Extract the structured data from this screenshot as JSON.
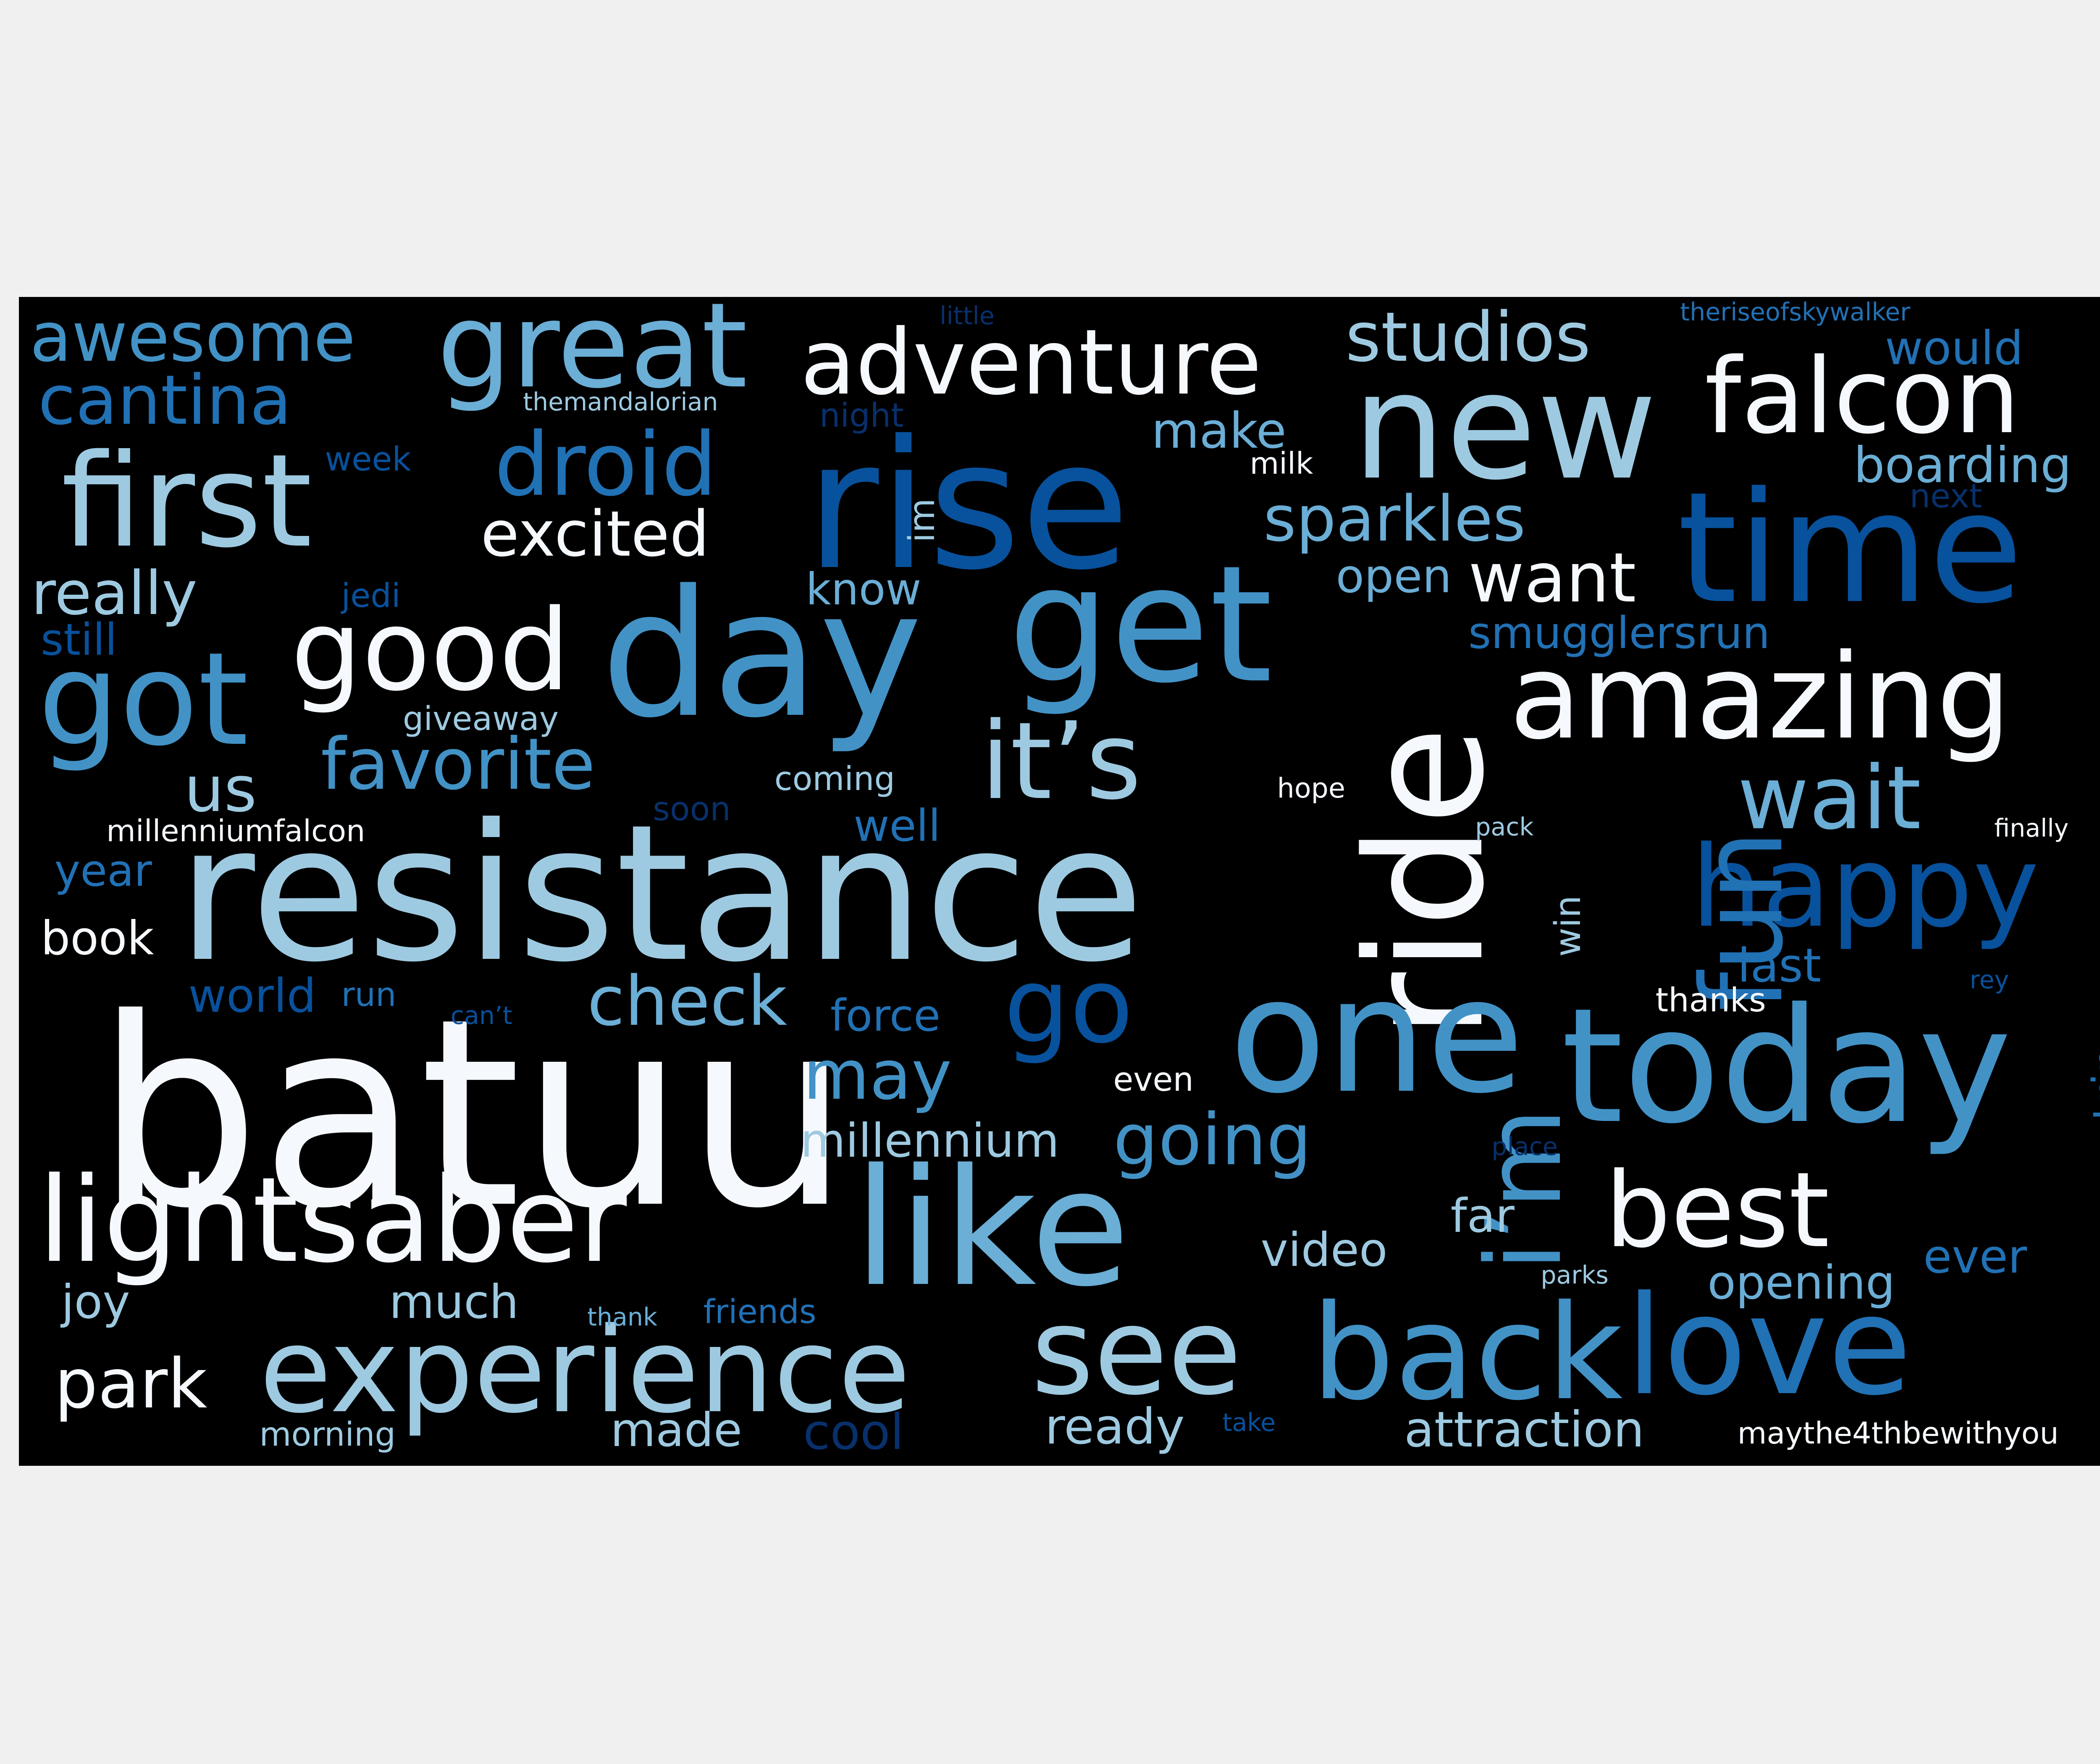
{
  "word_cloud": {
    "colors": {
      "background": "#000000",
      "page": "#f0f0f0",
      "white": "#f5f9fe",
      "pale_blue": "#9ecae1",
      "light_blue": "#6baed6",
      "mid_blue": "#4292c6",
      "blue": "#2171b5",
      "dark_blue": "#08519c",
      "navy": "#08306b"
    },
    "words": [
      {
        "text": "batuu",
        "color": "#f5f9fe"
      },
      {
        "text": "resistance",
        "color": "#9ecae1"
      },
      {
        "text": "rise",
        "color": "#08519c"
      },
      {
        "text": "day",
        "color": "#4292c6"
      },
      {
        "text": "get",
        "color": "#4292c6"
      },
      {
        "text": "new",
        "color": "#9ecae1"
      },
      {
        "text": "time",
        "color": "#08519c"
      },
      {
        "text": "ride",
        "color": "#f5f9fe"
      },
      {
        "text": "one",
        "color": "#4292c6"
      },
      {
        "text": "today",
        "color": "#4292c6"
      },
      {
        "text": "like",
        "color": "#6baed6"
      },
      {
        "text": "love",
        "color": "#2171b5"
      },
      {
        "text": "back",
        "color": "#4292c6"
      },
      {
        "text": "see",
        "color": "#9ecae1"
      },
      {
        "text": "experience",
        "color": "#9ecae1"
      },
      {
        "text": "lightsaber",
        "color": "#f5f9fe"
      },
      {
        "text": "amazing",
        "color": "#f5f9fe"
      },
      {
        "text": "first",
        "color": "#9ecae1"
      },
      {
        "text": "got",
        "color": "#4292c6"
      },
      {
        "text": "great",
        "color": "#6baed6"
      },
      {
        "text": "adventure",
        "color": "#f5f9fe"
      },
      {
        "text": "falcon",
        "color": "#f5f9fe"
      },
      {
        "text": "happy",
        "color": "#08519c"
      },
      {
        "text": "good",
        "color": "#f5f9fe"
      },
      {
        "text": "it’s",
        "color": "#9ecae1"
      },
      {
        "text": "i’m",
        "color": "#4292c6"
      },
      {
        "text": "fun",
        "color": "#2171b5"
      },
      {
        "text": "go",
        "color": "#08519c"
      },
      {
        "text": "best",
        "color": "#f5f9fe"
      },
      {
        "text": "droid",
        "color": "#2171b5"
      },
      {
        "text": "awesome",
        "color": "#4292c6"
      },
      {
        "text": "cantina",
        "color": "#2171b5"
      },
      {
        "text": "studios",
        "color": "#9ecae1"
      },
      {
        "text": "wait",
        "color": "#6baed6"
      },
      {
        "text": "visit",
        "color": "#9ecae1"
      },
      {
        "text": "excited",
        "color": "#f5f9fe"
      },
      {
        "text": "sparkles",
        "color": "#6baed6"
      },
      {
        "text": "check",
        "color": "#6baed6"
      },
      {
        "text": "park",
        "color": "#f5f9fe"
      },
      {
        "text": "favorite",
        "color": "#4292c6"
      },
      {
        "text": "going",
        "color": "#4292c6"
      },
      {
        "text": "want",
        "color": "#f5f9fe"
      },
      {
        "text": "really",
        "color": "#9ecae1"
      },
      {
        "text": "may",
        "color": "#4292c6"
      },
      {
        "text": "us",
        "color": "#9ecae1"
      },
      {
        "text": "attraction",
        "color": "#9ecae1"
      },
      {
        "text": "would",
        "color": "#2171b5"
      },
      {
        "text": "boarding",
        "color": "#6baed6"
      },
      {
        "text": "smugglersrun",
        "color": "#2171b5"
      },
      {
        "text": "millennium",
        "color": "#9ecae1"
      },
      {
        "text": "last",
        "color": "#2171b5"
      },
      {
        "text": "video",
        "color": "#9ecae1"
      },
      {
        "text": "opening",
        "color": "#6baed6"
      },
      {
        "text": "world",
        "color": "#08519c"
      },
      {
        "text": "ever",
        "color": "#2171b5"
      },
      {
        "text": "know",
        "color": "#6baed6"
      },
      {
        "text": "open",
        "color": "#6baed6"
      },
      {
        "text": "force",
        "color": "#2171b5"
      },
      {
        "text": "far",
        "color": "#9ecae1"
      },
      {
        "text": "make",
        "color": "#6baed6"
      },
      {
        "text": "made",
        "color": "#9ecae1"
      },
      {
        "text": "much",
        "color": "#9ecae1"
      },
      {
        "text": "ready",
        "color": "#9ecae1"
      },
      {
        "text": "cool",
        "color": "#08306b"
      },
      {
        "text": "trip",
        "color": "#2171b5"
      },
      {
        "text": "joy",
        "color": "#9ecae1"
      },
      {
        "text": "book",
        "color": "#f5f9fe"
      },
      {
        "text": "well",
        "color": "#2171b5"
      },
      {
        "text": "year",
        "color": "#2171b5"
      },
      {
        "text": "still",
        "color": "#08519c"
      },
      {
        "text": "win",
        "color": "#9ecae1"
      },
      {
        "text": "im",
        "color": "#9ecae1"
      },
      {
        "text": "maythe4thbewithyou",
        "color": "#f5f9fe"
      },
      {
        "text": "morning",
        "color": "#9ecae1"
      },
      {
        "text": "millenniumfalcon",
        "color": "#f5f9fe"
      },
      {
        "text": "friends",
        "color": "#2171b5"
      },
      {
        "text": "thanks",
        "color": "#f5f9fe"
      },
      {
        "text": "coming",
        "color": "#9ecae1"
      },
      {
        "text": "giveaway",
        "color": "#9ecae1"
      },
      {
        "text": "run",
        "color": "#2171b5"
      },
      {
        "text": "even",
        "color": "#f5f9fe"
      },
      {
        "text": "week",
        "color": "#08519c"
      },
      {
        "text": "night",
        "color": "#08306b"
      },
      {
        "text": "jedi",
        "color": "#08519c"
      },
      {
        "text": "next",
        "color": "#08306b"
      },
      {
        "text": "soon",
        "color": "#08306b"
      },
      {
        "text": "milk",
        "color": "#f5f9fe"
      },
      {
        "text": "hope",
        "color": "#f5f9fe"
      },
      {
        "text": "finally",
        "color": "#f5f9fe"
      },
      {
        "text": "pack",
        "color": "#9ecae1"
      },
      {
        "text": "rey",
        "color": "#08519c"
      },
      {
        "text": "can’t",
        "color": "#08519c"
      },
      {
        "text": "thank",
        "color": "#6baed6"
      },
      {
        "text": "parks",
        "color": "#9ecae1"
      },
      {
        "text": "place",
        "color": "#08306b"
      },
      {
        "text": "take",
        "color": "#08519c"
      },
      {
        "text": "thema‌ndalorian",
        "color": "#9ecae1"
      },
      {
        "text": "theriseofskywalker",
        "color": "#2171b5"
      },
      {
        "text": "little",
        "color": "#08306b"
      }
    ]
  }
}
